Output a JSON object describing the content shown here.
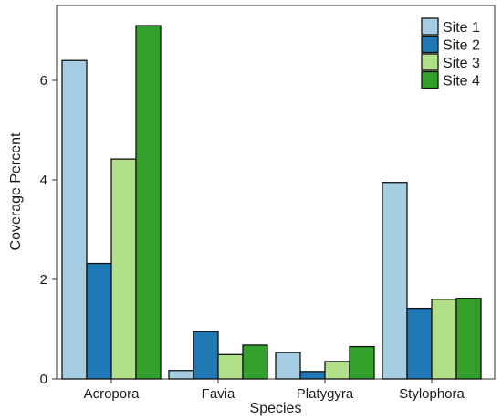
{
  "chart_data": {
    "type": "bar",
    "title": "",
    "xlabel": "Species",
    "ylabel": "Coverage Percent",
    "categories": [
      "Acropora",
      "Favia",
      "Platygyra",
      "Stylophora"
    ],
    "ylim": [
      0,
      7.5
    ],
    "yticks": [
      "0",
      "2",
      "4",
      "6"
    ],
    "series": [
      {
        "name": "Site 1",
        "color": "#a6cee3",
        "values": [
          6.4,
          0.17,
          0.53,
          3.95
        ]
      },
      {
        "name": "Site 2",
        "color": "#1f78b4",
        "values": [
          2.32,
          0.95,
          0.15,
          1.42
        ]
      },
      {
        "name": "Site 3",
        "color": "#b2df8a",
        "values": [
          4.42,
          0.49,
          0.35,
          1.6
        ]
      },
      {
        "name": "Site 4",
        "color": "#33a02c",
        "values": [
          7.1,
          0.68,
          0.65,
          1.62
        ]
      }
    ],
    "legend_position": "top-right",
    "grid": false
  }
}
